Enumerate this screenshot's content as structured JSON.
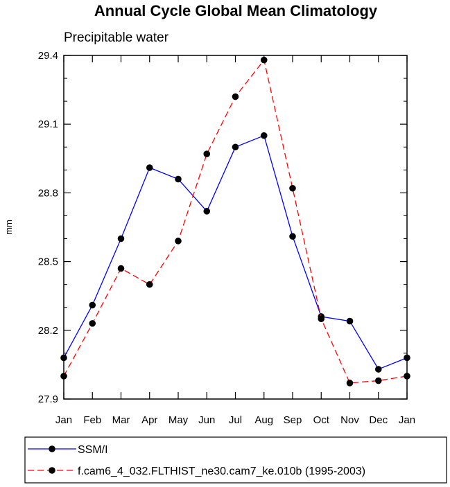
{
  "chart_data": {
    "type": "line",
    "title": "Annual Cycle Global Mean Climatology",
    "subtitle": "Precipitable water",
    "xlabel": "",
    "ylabel": "mm",
    "categories": [
      "Jan",
      "Feb",
      "Mar",
      "Apr",
      "May",
      "Jun",
      "Jul",
      "Aug",
      "Sep",
      "Oct",
      "Nov",
      "Dec",
      "Jan"
    ],
    "ylim": [
      27.9,
      29.4
    ],
    "yticks": [
      27.9,
      28.2,
      28.5,
      28.8,
      29.1,
      29.4
    ],
    "ytick_labels": [
      "27.9",
      "28.2",
      "28.5",
      "28.8",
      "29.1",
      "29.4"
    ],
    "grid": false,
    "legend_position": "bottom",
    "series": [
      {
        "name": "SSM/I",
        "color": "#0000ff",
        "dash": "solid",
        "values": [
          28.08,
          28.31,
          28.6,
          28.91,
          28.86,
          28.72,
          29.0,
          29.05,
          28.61,
          28.26,
          28.24,
          28.03,
          28.08
        ]
      },
      {
        "name": "f.cam6_4_032.FLTHIST_ne30.cam7_ke.010b (1995-2003)",
        "color": "#ff0000",
        "dash": "dashed",
        "values": [
          28.0,
          28.23,
          28.47,
          28.4,
          28.59,
          28.97,
          29.22,
          29.38,
          28.82,
          28.25,
          27.97,
          27.98,
          28.0
        ]
      }
    ]
  }
}
